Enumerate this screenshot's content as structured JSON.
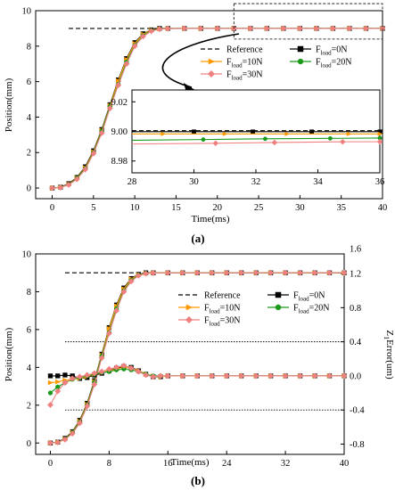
{
  "colors": {
    "reference": "#000000",
    "f0": "#000000",
    "f10": "#ff9900",
    "f20": "#1a9a1a",
    "f30": "#f08080",
    "threshold": "#000000"
  },
  "chart_data": [
    {
      "type": "line",
      "panel_label": "(a)",
      "xlabel": "Time(ms)",
      "ylabel": "Position(mm)",
      "xlim": [
        -2,
        40
      ],
      "ylim": [
        -0.6,
        10
      ],
      "xticks": [
        "0",
        "5",
        "10",
        "15",
        "20",
        "25",
        "30",
        "35",
        "40"
      ],
      "yticks": [
        "0",
        "2",
        "4",
        "6",
        "8",
        "10"
      ],
      "legend_position": "center-right",
      "legend": [
        {
          "label": "Reference",
          "style": "dashed"
        },
        {
          "label": "F",
          "sub": "load",
          "suffix": "=0N",
          "marker": "square"
        },
        {
          "label": "F",
          "sub": "load",
          "suffix": "=10N",
          "marker": "triangle-right"
        },
        {
          "label": "F",
          "sub": "load",
          "suffix": "=20N",
          "marker": "circle"
        },
        {
          "label": "F",
          "sub": "load",
          "suffix": "=30N",
          "marker": "diamond"
        }
      ],
      "series": [
        {
          "key": "reference",
          "x": [
            2,
            40
          ],
          "y": [
            9.0,
            9.0
          ]
        },
        {
          "key": "f0",
          "x": [
            0,
            1,
            2,
            3,
            4,
            5,
            6,
            7,
            8,
            9,
            10,
            11,
            12,
            13,
            14,
            16,
            18,
            20,
            22,
            24,
            26,
            28,
            30,
            32,
            34,
            36,
            38,
            40
          ],
          "y": [
            0,
            0.05,
            0.25,
            0.6,
            1.2,
            2.1,
            3.3,
            4.7,
            6.1,
            7.3,
            8.2,
            8.7,
            8.92,
            9.0,
            9.0,
            9.0,
            9.0,
            9.0,
            9.0,
            9.0,
            9.0,
            9.0,
            9.0,
            9.0,
            9.0,
            9.0,
            9.0,
            9.0
          ]
        },
        {
          "key": "f10",
          "x": [
            0,
            1,
            2,
            3,
            4,
            5,
            6,
            7,
            8,
            9,
            10,
            11,
            12,
            13,
            14,
            16,
            18,
            20,
            22,
            24,
            26,
            28,
            30,
            32,
            34,
            36,
            38,
            40
          ],
          "y": [
            0,
            0.04,
            0.22,
            0.57,
            1.15,
            2.05,
            3.25,
            4.65,
            6.05,
            7.25,
            8.15,
            8.68,
            8.9,
            8.98,
            9.0,
            9.0,
            9.0,
            9.0,
            9.0,
            9.0,
            9.0,
            9.0,
            9.0,
            9.0,
            9.0,
            9.0,
            9.0,
            9.0
          ]
        },
        {
          "key": "f20",
          "x": [
            0,
            1,
            2,
            3,
            4,
            5,
            6,
            7,
            8,
            9,
            10,
            11,
            12,
            13,
            14,
            16,
            18,
            20,
            22,
            24,
            26,
            28,
            30,
            32,
            34,
            36,
            38,
            40
          ],
          "y": [
            0,
            0.04,
            0.2,
            0.55,
            1.1,
            2.0,
            3.2,
            4.6,
            5.85,
            7.1,
            8.05,
            8.6,
            8.88,
            8.97,
            8.99,
            9.0,
            9.0,
            9.0,
            9.0,
            9.0,
            9.0,
            9.0,
            9.0,
            9.0,
            9.0,
            9.0,
            9.0,
            9.0
          ]
        },
        {
          "key": "f30",
          "x": [
            0,
            1,
            2,
            3,
            4,
            5,
            6,
            7,
            8,
            9,
            10,
            11,
            12,
            13,
            14,
            16,
            18,
            20,
            22,
            24,
            26,
            28,
            30,
            32,
            34,
            36,
            38,
            40
          ],
          "y": [
            0,
            0.03,
            0.18,
            0.5,
            1.05,
            1.95,
            3.1,
            4.5,
            5.8,
            7.0,
            8.0,
            8.55,
            8.85,
            8.96,
            8.99,
            9.0,
            9.0,
            9.0,
            9.0,
            9.0,
            9.0,
            9.0,
            9.0,
            9.0,
            9.0,
            9.0,
            9.0,
            9.0
          ]
        }
      ],
      "zoom_box": {
        "x": [
          22,
          40
        ],
        "y": [
          8.4,
          10.4
        ]
      },
      "inset": {
        "xlim": [
          28,
          36
        ],
        "ylim": [
          8.972,
          9.028
        ],
        "xticks": [
          "28",
          "30",
          "32",
          "34",
          "36"
        ],
        "yticks": [
          "8.98",
          "9.00",
          "9.02"
        ],
        "series": [
          {
            "key": "reference",
            "x": [
              28,
              36
            ],
            "y": [
              9.0005,
              9.0005
            ]
          },
          {
            "key": "f0",
            "x": [
              28,
              30.0,
              31.9,
              33.8,
              36
            ],
            "y": [
              8.9998,
              8.9998,
              8.9998,
              8.9998,
              8.9998
            ]
          },
          {
            "key": "f10",
            "x": [
              28,
              29.0,
              31.0,
              33.0,
              35.0,
              36
            ],
            "y": [
              8.9983,
              8.9983,
              8.9983,
              8.9983,
              8.9983,
              8.9983
            ]
          },
          {
            "key": "f20",
            "x": [
              28,
              30.3,
              32.3,
              34.4,
              36
            ],
            "y": [
              8.994,
              8.9945,
              8.995,
              8.9953,
              8.9955
            ]
          },
          {
            "key": "f30",
            "x": [
              28,
              30.7,
              32.6,
              34.8,
              36
            ],
            "y": [
              8.9915,
              8.992,
              8.9925,
              8.993,
              8.993
            ]
          }
        ]
      }
    },
    {
      "type": "line",
      "panel_label": "(b)",
      "xlabel": "Time(ms)",
      "ylabel": "Position(mm)",
      "y2label": "Z",
      "y2label_sub": "1",
      "y2label_suffix": "Error(um)",
      "xlim": [
        -2,
        40
      ],
      "ylim": [
        -0.6,
        10
      ],
      "y2lim": [
        -0.92,
        1.43
      ],
      "xticks": [
        "0",
        "8",
        "16",
        "24",
        "32",
        "40"
      ],
      "yticks": [
        "0",
        "2",
        "4",
        "6",
        "8",
        "10"
      ],
      "y2ticks": [
        "-0.8",
        "-0.4",
        "0.0",
        "0.4",
        "0.8",
        "1.2",
        "1.6"
      ],
      "legend_position": "center-right",
      "legend": [
        {
          "label": "Reference",
          "style": "dashed"
        },
        {
          "label": "F",
          "sub": "load",
          "suffix": "=0N",
          "marker": "square"
        },
        {
          "label": "F",
          "sub": "load",
          "suffix": "=10N",
          "marker": "triangle-right"
        },
        {
          "label": "F",
          "sub": "load",
          "suffix": "=20N",
          "marker": "circle"
        },
        {
          "label": "F",
          "sub": "load",
          "suffix": "=30N",
          "marker": "diamond"
        }
      ],
      "thresholds_y2": [
        0.4,
        -0.4
      ],
      "threshold_x": [
        2,
        40
      ],
      "series": [
        {
          "key": "reference",
          "x": [
            2,
            40
          ],
          "y": [
            9.0,
            9.0
          ]
        },
        {
          "key": "f0",
          "x": [
            0,
            1,
            2,
            3,
            4,
            5,
            6,
            7,
            8,
            9,
            10,
            11,
            12,
            13,
            14,
            16,
            18,
            20,
            22,
            24,
            26,
            28,
            30,
            32,
            34,
            36,
            38,
            40
          ],
          "y": [
            0,
            0.05,
            0.25,
            0.6,
            1.2,
            2.1,
            3.3,
            4.7,
            6.1,
            7.3,
            8.2,
            8.7,
            8.92,
            9.0,
            9.0,
            9.0,
            9.0,
            9.0,
            9.0,
            9.0,
            9.0,
            9.0,
            9.0,
            9.0,
            9.0,
            9.0,
            9.0,
            9.0
          ]
        },
        {
          "key": "f10",
          "x": [
            0,
            1,
            2,
            3,
            4,
            5,
            6,
            7,
            8,
            9,
            10,
            11,
            12,
            13,
            14,
            16,
            18,
            20,
            22,
            24,
            26,
            28,
            30,
            32,
            34,
            36,
            38,
            40
          ],
          "y": [
            0,
            0.04,
            0.22,
            0.57,
            1.15,
            2.05,
            3.25,
            4.65,
            6.05,
            7.25,
            8.15,
            8.68,
            8.9,
            8.98,
            9.0,
            9.0,
            9.0,
            9.0,
            9.0,
            9.0,
            9.0,
            9.0,
            9.0,
            9.0,
            9.0,
            9.0,
            9.0,
            9.0
          ]
        },
        {
          "key": "f20",
          "x": [
            0,
            1,
            2,
            3,
            4,
            5,
            6,
            7,
            8,
            9,
            10,
            11,
            12,
            13,
            14,
            16,
            18,
            20,
            22,
            24,
            26,
            28,
            30,
            32,
            34,
            36,
            38,
            40
          ],
          "y": [
            0,
            0.04,
            0.2,
            0.55,
            1.1,
            2.0,
            3.2,
            4.6,
            5.85,
            7.1,
            8.05,
            8.6,
            8.88,
            8.97,
            8.99,
            9.0,
            9.0,
            9.0,
            9.0,
            9.0,
            9.0,
            9.0,
            9.0,
            9.0,
            9.0,
            9.0,
            9.0,
            9.0
          ]
        },
        {
          "key": "f30",
          "x": [
            0,
            1,
            2,
            3,
            4,
            5,
            6,
            7,
            8,
            9,
            10,
            11,
            12,
            13,
            14,
            16,
            18,
            20,
            22,
            24,
            26,
            28,
            30,
            32,
            34,
            36,
            38,
            40
          ],
          "y": [
            0,
            0.03,
            0.18,
            0.5,
            1.05,
            1.95,
            3.1,
            4.5,
            5.8,
            7.0,
            8.0,
            8.55,
            8.85,
            8.96,
            8.99,
            9.0,
            9.0,
            9.0,
            9.0,
            9.0,
            9.0,
            9.0,
            9.0,
            9.0,
            9.0,
            9.0,
            9.0,
            9.0
          ]
        }
      ],
      "error_series": [
        {
          "key": "f0",
          "x": [
            0,
            1,
            2,
            3,
            4,
            5,
            6,
            7,
            8,
            9,
            10,
            11,
            12,
            13,
            14,
            15,
            16,
            18,
            20,
            22,
            24,
            26,
            28,
            30,
            32,
            34,
            36,
            38,
            40
          ],
          "y": [
            0.0,
            0.0,
            0.01,
            0.0,
            -0.03,
            -0.02,
            0.01,
            0.03,
            0.06,
            0.09,
            0.11,
            0.1,
            0.06,
            0.02,
            -0.01,
            -0.01,
            0.0,
            0.0,
            0.0,
            0.0,
            0.0,
            0.0,
            0.0,
            0.0,
            0.0,
            0.0,
            0.0,
            0.0,
            0.0
          ]
        },
        {
          "key": "f10",
          "x": [
            0,
            1,
            2,
            3,
            4,
            5,
            6,
            7,
            8,
            9,
            10,
            11,
            12,
            13,
            14,
            15,
            16,
            18,
            20,
            22,
            24,
            26,
            28,
            30,
            32,
            34,
            36,
            38,
            40
          ],
          "y": [
            -0.08,
            -0.07,
            -0.05,
            -0.04,
            -0.03,
            -0.01,
            0.02,
            0.04,
            0.06,
            0.08,
            0.1,
            0.09,
            0.06,
            0.02,
            0.0,
            -0.01,
            0.0,
            0.0,
            0.0,
            0.0,
            0.0,
            0.0,
            0.0,
            0.0,
            0.0,
            0.0,
            0.0,
            0.0,
            0.0
          ]
        },
        {
          "key": "f20",
          "x": [
            0,
            1,
            2,
            3,
            4,
            5,
            6,
            7,
            8,
            9,
            10,
            11,
            12,
            13,
            14,
            15,
            16,
            18,
            20,
            22,
            24,
            26,
            28,
            30,
            32,
            34,
            36,
            38,
            40
          ],
          "y": [
            -0.2,
            -0.13,
            -0.08,
            -0.04,
            -0.02,
            0.0,
            0.02,
            0.04,
            0.05,
            0.07,
            0.08,
            0.07,
            0.05,
            0.02,
            0.0,
            0.0,
            0.0,
            0.0,
            0.0,
            0.0,
            0.0,
            0.0,
            0.0,
            0.0,
            0.0,
            0.0,
            0.0,
            0.0,
            0.0
          ]
        },
        {
          "key": "f30",
          "x": [
            0,
            1,
            2,
            3,
            4,
            5,
            6,
            7,
            8,
            9,
            10,
            11,
            12,
            13,
            14,
            15,
            16,
            18,
            20,
            22,
            24,
            26,
            28,
            30,
            32,
            34,
            36,
            38,
            40
          ],
          "y": [
            -0.34,
            -0.18,
            -0.08,
            -0.03,
            -0.01,
            0.01,
            0.03,
            0.05,
            0.08,
            0.1,
            0.12,
            0.09,
            0.05,
            0.01,
            -0.01,
            0.0,
            0.0,
            0.0,
            0.0,
            0.0,
            0.0,
            0.0,
            0.0,
            0.0,
            0.0,
            0.0,
            0.0,
            0.0,
            0.0
          ]
        }
      ]
    }
  ]
}
